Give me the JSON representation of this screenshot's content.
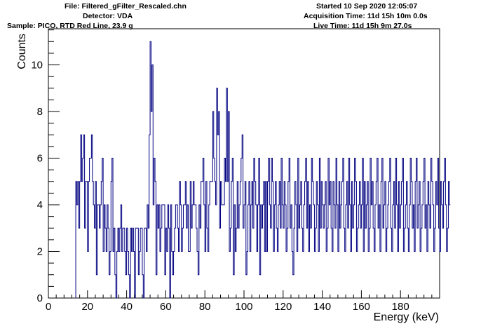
{
  "header": {
    "file": "File: Filtered_gFilter_Rescaled.chn",
    "detector": "Detector: VDA",
    "sample": "Sample: PICO, RTD Red Line, 23.9 g",
    "started": "Started 10 Sep 2020 12:05:07",
    "acquisition": "Acquisition Time: 11d 15h 10m 0.0s",
    "live": "Live Time: 11d 15h 9m 27.0s"
  },
  "chart_data": {
    "type": "histogram",
    "xlabel": "Energy (keV)",
    "ylabel": "Counts",
    "xlim": [
      0,
      200
    ],
    "ylim": [
      0,
      11.55
    ],
    "xticks": [
      0,
      20,
      40,
      60,
      80,
      100,
      120,
      140,
      160,
      180
    ],
    "yticks": [
      0,
      2,
      4,
      6,
      8,
      10
    ],
    "bin_width": 0.5,
    "x_start": 14,
    "line_color": "#000080",
    "values": [
      5,
      4,
      5,
      3,
      5,
      7,
      5,
      6,
      7,
      3,
      5,
      5,
      2,
      5,
      6,
      6,
      7,
      5,
      4,
      3,
      5,
      1,
      4,
      4,
      3,
      4,
      5,
      6,
      2,
      4,
      3,
      2,
      4,
      3,
      1,
      2,
      5,
      6,
      2,
      3,
      1,
      0,
      2,
      3,
      2,
      3,
      4,
      2,
      3,
      3,
      2,
      1,
      3,
      2,
      1,
      0,
      3,
      2,
      3,
      2,
      0,
      3,
      3,
      3,
      1,
      2,
      3,
      3,
      1,
      0,
      3,
      3,
      2,
      4,
      3,
      7,
      11,
      8,
      10,
      4,
      6,
      5,
      1,
      4,
      3,
      4,
      2,
      3,
      4,
      4,
      4,
      1,
      3,
      2,
      4,
      3,
      0,
      4,
      2,
      1,
      2,
      3,
      4,
      4,
      3,
      2,
      5,
      4,
      2,
      3,
      4,
      4,
      5,
      3,
      4,
      2,
      2,
      5,
      3,
      4,
      5,
      4,
      4,
      3,
      2,
      1,
      4,
      3,
      5,
      5,
      6,
      4,
      2,
      5,
      3,
      2,
      4,
      5,
      5,
      5,
      8,
      6,
      5,
      4,
      9,
      7,
      8,
      3,
      5,
      4,
      4,
      4,
      6,
      5,
      9,
      5,
      8,
      2,
      3,
      5,
      6,
      1,
      4,
      2,
      3,
      5,
      3,
      4,
      5,
      6,
      7,
      3,
      4,
      5,
      1,
      2,
      4,
      5,
      2,
      4,
      5,
      3,
      6,
      5,
      4,
      2,
      4,
      6,
      1,
      4,
      3,
      4,
      5,
      2,
      5,
      2,
      5,
      6,
      4,
      3,
      6,
      5,
      2,
      4,
      5,
      3,
      2,
      4,
      5,
      3,
      6,
      4,
      3,
      5,
      4,
      2,
      3,
      5,
      6,
      3,
      4,
      2,
      1,
      3,
      5,
      4,
      2,
      6,
      3,
      4,
      5,
      3,
      2,
      4,
      5,
      6,
      3,
      5,
      2,
      4,
      3,
      6,
      5,
      4,
      2,
      3,
      5,
      4,
      2,
      6,
      3,
      5,
      4,
      3,
      4,
      5,
      2,
      3,
      6,
      4,
      5,
      3,
      2,
      5,
      4,
      3,
      6,
      4,
      2,
      5,
      3,
      4,
      5,
      6,
      3,
      2,
      4,
      5,
      3,
      6,
      4,
      2,
      5,
      3,
      4,
      6,
      5,
      2,
      3,
      4,
      5,
      3,
      4,
      6,
      2,
      5,
      3,
      4,
      5,
      2,
      3,
      6,
      4,
      5,
      3,
      2,
      4,
      5,
      6,
      3,
      4,
      2,
      5,
      6,
      3,
      4,
      5,
      2,
      3,
      4,
      5,
      6,
      3,
      2,
      4,
      5,
      3,
      6,
      4,
      2,
      5,
      3,
      4,
      5,
      6,
      2,
      3,
      4,
      5,
      3,
      2,
      4,
      6,
      5,
      3,
      4,
      2,
      5,
      6,
      3,
      4,
      5,
      2,
      3,
      4,
      5,
      6,
      3,
      4,
      2,
      5,
      4,
      3,
      6,
      5,
      4,
      2,
      3,
      5,
      4,
      6,
      3,
      2,
      5,
      4,
      3,
      5,
      6,
      4,
      2,
      3,
      5,
      4
    ]
  }
}
